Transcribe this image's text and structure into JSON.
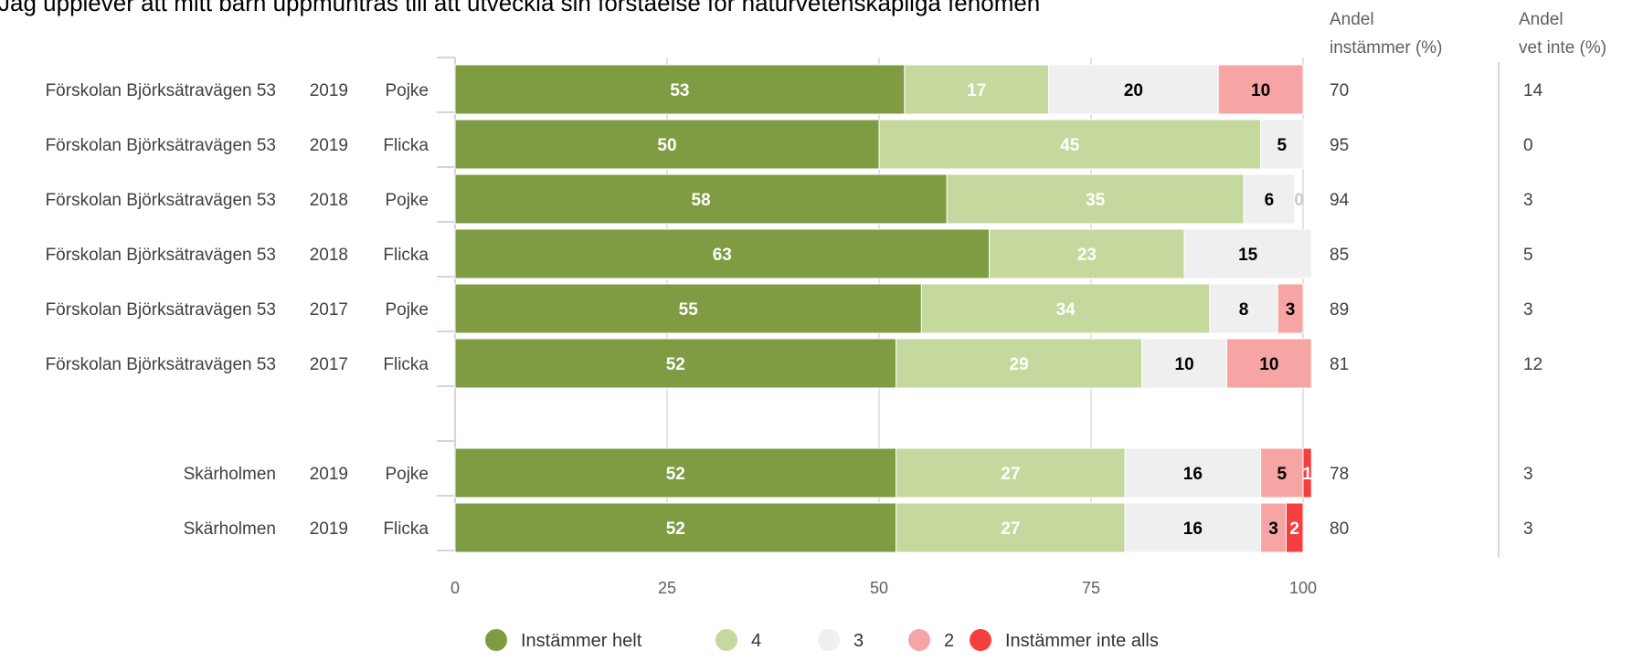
{
  "chart_data": {
    "type": "bar",
    "orientation": "horizontal",
    "stacked": true,
    "title": "Jag upplever att mitt barn uppmuntras till att utveckla sin förståelse för naturvetenskapliga fenomen",
    "rows": [
      {
        "school": "Förskolan Björksätravägen 53",
        "year": "2019",
        "gender": "Pojke",
        "agree": "70",
        "dont_know": "14"
      },
      {
        "school": "Förskolan Björksätravägen 53",
        "year": "2019",
        "gender": "Flicka",
        "agree": "95",
        "dont_know": "0"
      },
      {
        "school": "Förskolan Björksätravägen 53",
        "year": "2018",
        "gender": "Pojke",
        "agree": "94",
        "dont_know": "3"
      },
      {
        "school": "Förskolan Björksätravägen 53",
        "year": "2018",
        "gender": "Flicka",
        "agree": "85",
        "dont_know": "5"
      },
      {
        "school": "Förskolan Björksätravägen 53",
        "year": "2017",
        "gender": "Pojke",
        "agree": "89",
        "dont_know": "3"
      },
      {
        "school": "Förskolan Björksätravägen 53",
        "year": "2017",
        "gender": "Flicka",
        "agree": "81",
        "dont_know": "12"
      },
      {
        "school": "Skärholmen",
        "year": "2019",
        "gender": "Pojke",
        "agree": "78",
        "dont_know": "3"
      },
      {
        "school": "Skärholmen",
        "year": "2019",
        "gender": "Flicka",
        "agree": "80",
        "dont_know": "3"
      }
    ],
    "series": [
      {
        "name": "Instämmer helt",
        "color": "#7f9c42",
        "label_color": "#ffffff",
        "values": [
          53,
          50,
          58,
          63,
          55,
          52,
          52,
          52
        ]
      },
      {
        "name": "4",
        "color": "#c5d89e",
        "label_color": "#ffffff",
        "values": [
          17,
          45,
          35,
          23,
          34,
          29,
          27,
          27
        ]
      },
      {
        "name": "3",
        "color": "#efefef",
        "label_color": "#000000",
        "values": [
          20,
          5,
          6,
          15,
          8,
          10,
          16,
          16
        ]
      },
      {
        "name": "2",
        "color": "#f7a4a4",
        "label_color": "#000000",
        "values": [
          10,
          0,
          0,
          0,
          3,
          10,
          5,
          3
        ]
      },
      {
        "name": "Instämmer inte alls",
        "color": "#f53f3f",
        "label_color": "#ffffff",
        "values": [
          0,
          0,
          0,
          0,
          0,
          0,
          1,
          2
        ]
      }
    ],
    "xlim": [
      0,
      100
    ],
    "xticks": [
      "0",
      "25",
      "50",
      "75",
      "100"
    ],
    "column_headers": {
      "agree_line1": "Andel",
      "agree_line2": "instämmer (%)",
      "dontknow_line1": "Andel",
      "dontknow_line2": "vet inte (%)"
    },
    "grid": true,
    "legend_position": "bottom"
  }
}
